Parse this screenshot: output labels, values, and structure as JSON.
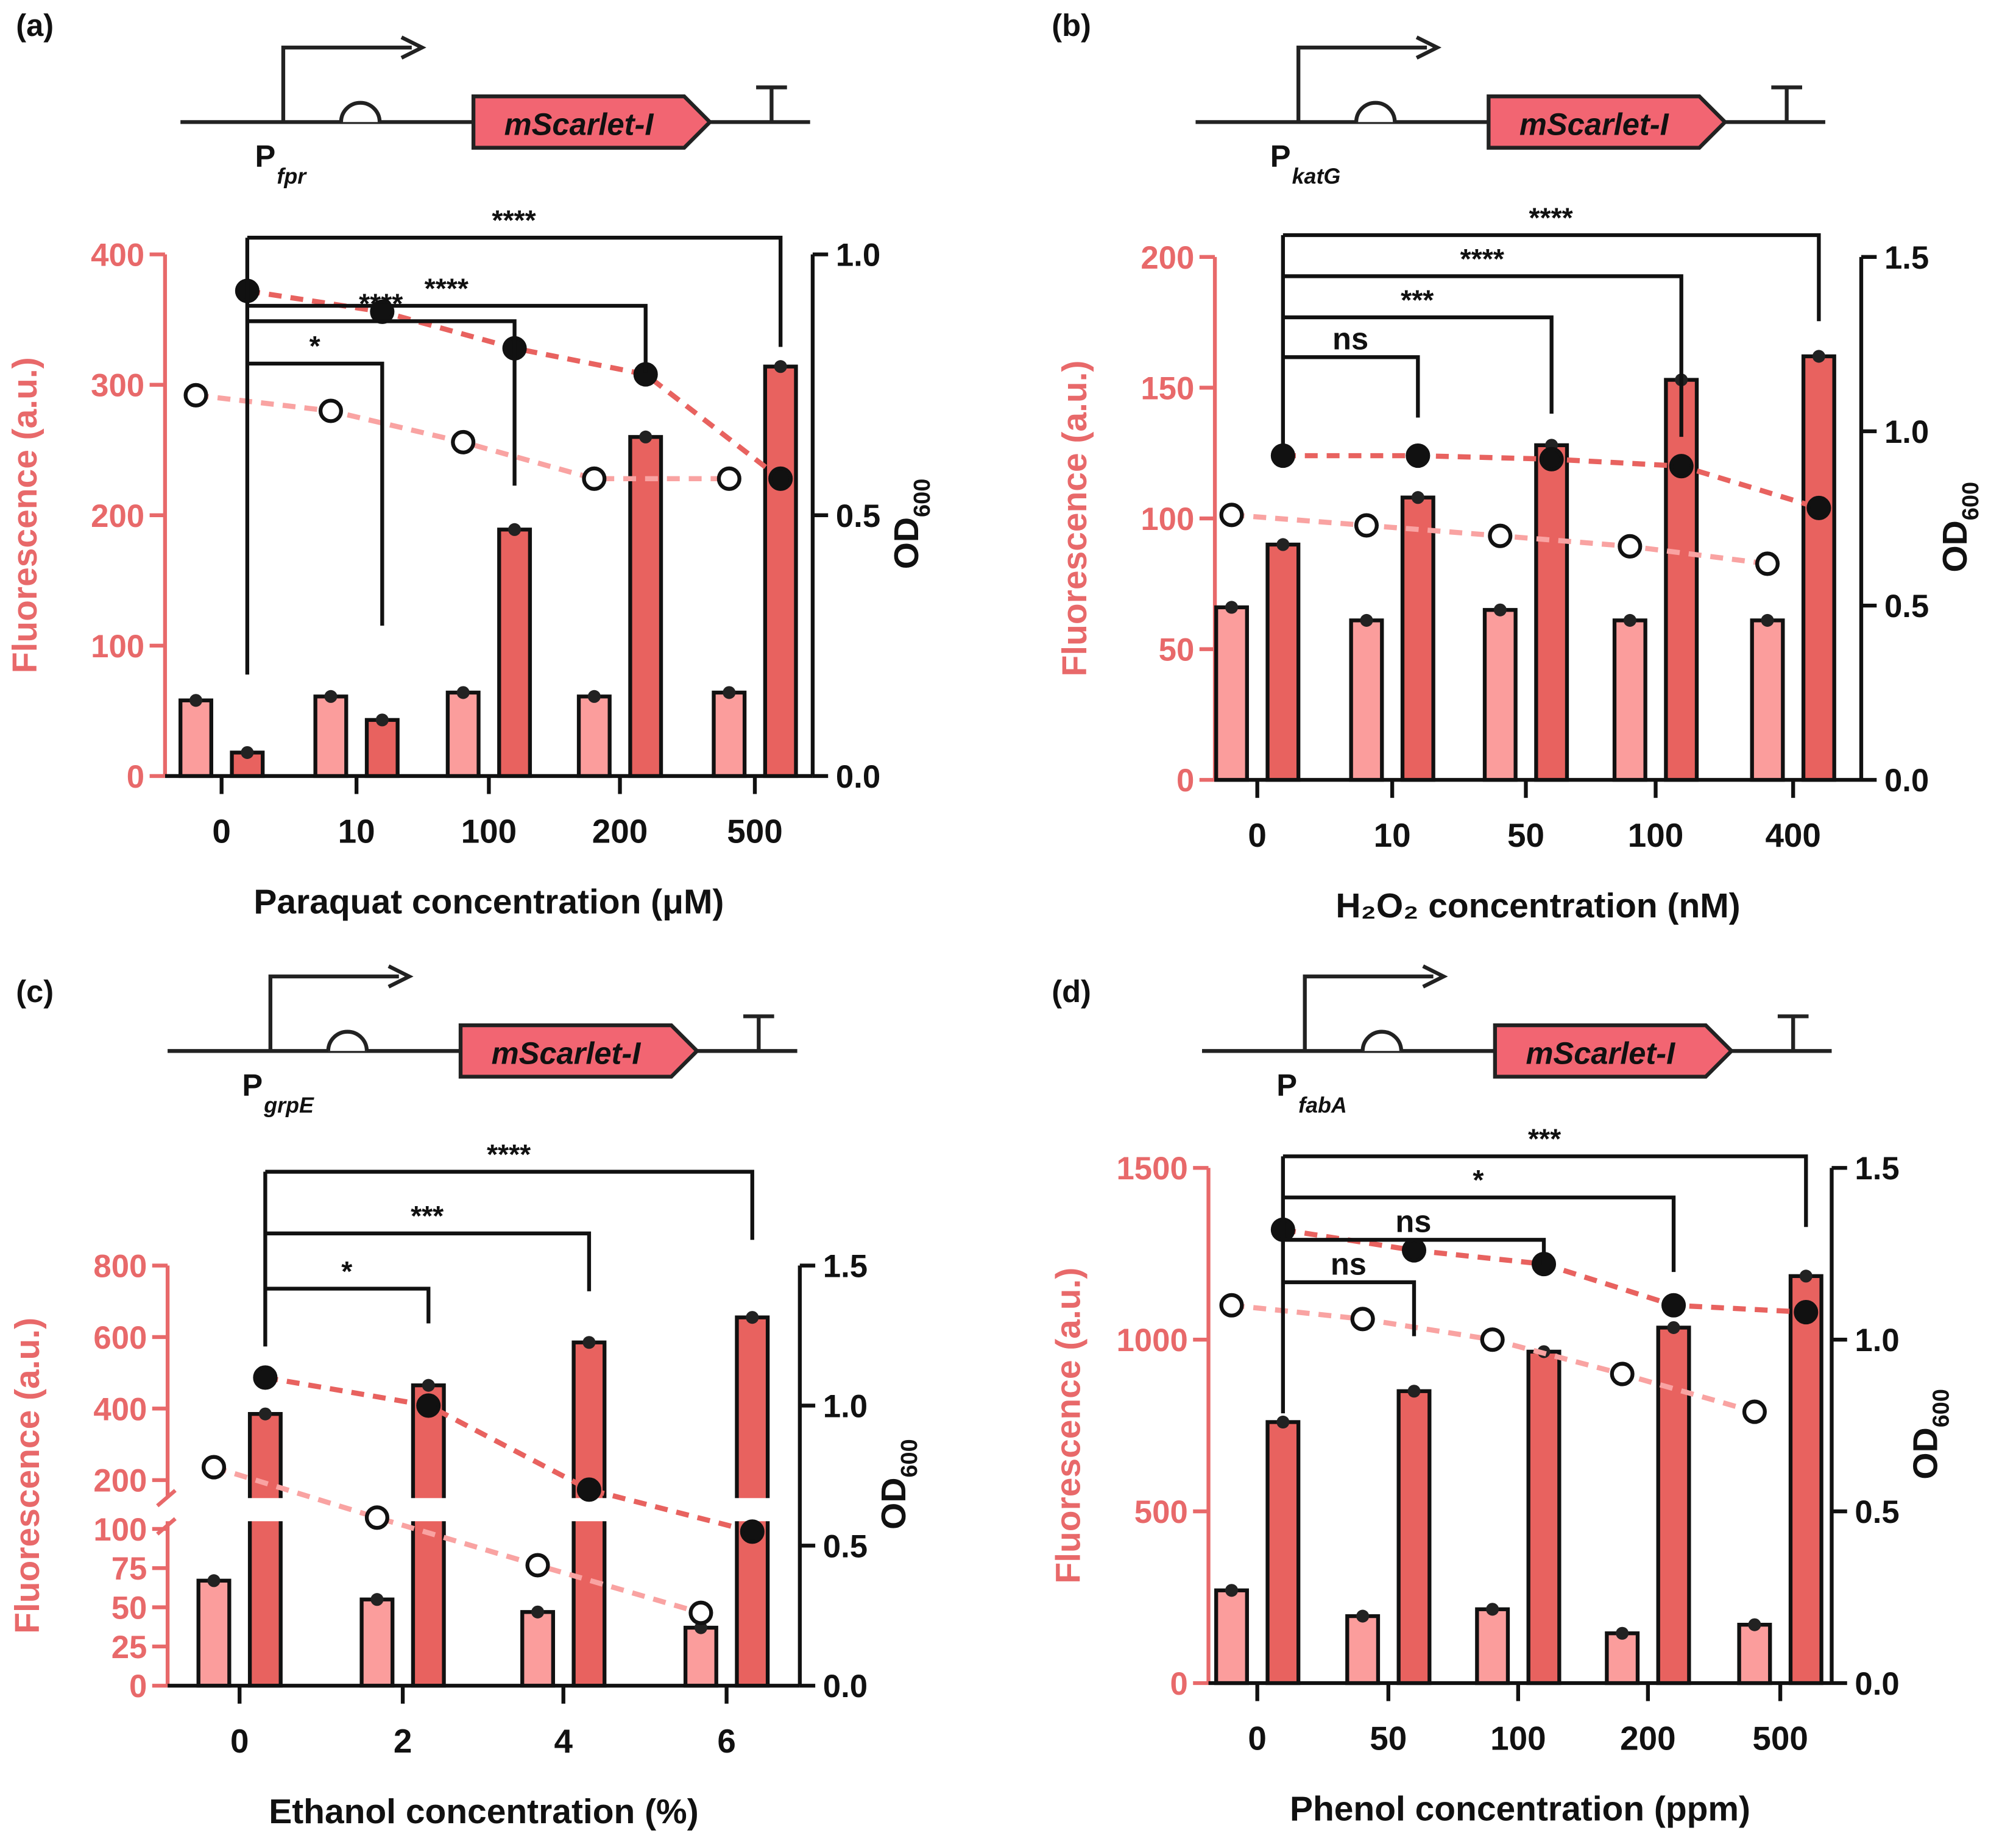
{
  "colors": {
    "light_bar": "#fb9d9c",
    "dark_bar": "#e8625f",
    "axis_left": "#e8696a",
    "axis_right": "#111111",
    "line_dark": "#e8625f",
    "line_light": "#f9a3a2"
  },
  "chart_data": [
    {
      "type": "bar",
      "panel_label": "(a)",
      "promoter": {
        "p": "P",
        "sub": "fpr"
      },
      "gene": "mScarlet-I",
      "categories": [
        "0",
        "10",
        "100",
        "200",
        "500"
      ],
      "xlabel": "Paraquat concentration (μM)",
      "ylabel": "Fluorescence (a.u.)",
      "y2label": {
        "main": "OD",
        "sub": "600"
      },
      "ylim": [
        0,
        400
      ],
      "y2lim": [
        0,
        1.0
      ],
      "yticks": [
        "0",
        "100",
        "200",
        "300",
        "400"
      ],
      "y2ticks": [
        "0.0",
        "0.5",
        "1.0"
      ],
      "series": [
        {
          "name": "fluorescence_control",
          "kind": "bar",
          "values": [
            58,
            61,
            64,
            61,
            64
          ]
        },
        {
          "name": "fluorescence_induced",
          "kind": "bar",
          "values": [
            18,
            43,
            189,
            260,
            314
          ]
        },
        {
          "name": "od600_control",
          "kind": "line",
          "values": [
            0.73,
            0.7,
            0.64,
            0.57,
            0.57
          ]
        },
        {
          "name": "od600_induced",
          "kind": "line",
          "values": [
            0.93,
            0.89,
            0.82,
            0.77,
            0.57
          ]
        }
      ],
      "significance": [
        {
          "to": "10",
          "label": "*"
        },
        {
          "to": "100",
          "label": "****"
        },
        {
          "to": "200",
          "label": "****"
        },
        {
          "to": "500",
          "label": "****"
        }
      ]
    },
    {
      "type": "bar",
      "panel_label": "(b)",
      "promoter": {
        "p": "P",
        "sub": "katG"
      },
      "gene": "mScarlet-I",
      "categories": [
        "0",
        "10",
        "50",
        "100",
        "400"
      ],
      "xlabel": "H₂O₂ concentration (nM)",
      "ylabel": "Fluorescence (a.u.)",
      "y2label": {
        "main": "OD",
        "sub": "600"
      },
      "ylim": [
        0,
        200
      ],
      "y2lim": [
        0,
        1.5
      ],
      "yticks": [
        "0",
        "50",
        "100",
        "150",
        "200"
      ],
      "y2ticks": [
        "0.0",
        "0.5",
        "1.0",
        "1.5"
      ],
      "series": [
        {
          "name": "fluorescence_control",
          "kind": "bar",
          "values": [
            66,
            61,
            65,
            61,
            61
          ]
        },
        {
          "name": "fluorescence_induced",
          "kind": "bar",
          "values": [
            90,
            108,
            128,
            153,
            162
          ]
        },
        {
          "name": "od600_control",
          "kind": "line",
          "values": [
            0.76,
            0.73,
            0.7,
            0.67,
            0.62
          ]
        },
        {
          "name": "od600_induced",
          "kind": "line",
          "values": [
            0.93,
            0.93,
            0.92,
            0.9,
            0.78
          ]
        }
      ],
      "significance": [
        {
          "to": "10",
          "label": "ns"
        },
        {
          "to": "50",
          "label": "***"
        },
        {
          "to": "100",
          "label": "****"
        },
        {
          "to": "400",
          "label": "****"
        }
      ]
    },
    {
      "type": "bar",
      "panel_label": "(c)",
      "promoter": {
        "p": "P",
        "sub": "grpE"
      },
      "gene": "mScarlet-I",
      "categories": [
        "0",
        "2",
        "4",
        "6"
      ],
      "xlabel": "Ethanol concentration (%)",
      "ylabel": "Fluorescence (a.u.)",
      "y2label": {
        "main": "OD",
        "sub": "600"
      },
      "ylim": [
        0,
        800
      ],
      "y_break": [
        100,
        200
      ],
      "y2lim": [
        0,
        1.5
      ],
      "yticks": [
        "0",
        "25",
        "50",
        "75",
        "100",
        "200",
        "400",
        "600",
        "800"
      ],
      "y2ticks": [
        "0.0",
        "0.5",
        "1.0",
        "1.5"
      ],
      "series": [
        {
          "name": "fluorescence_control",
          "kind": "bar",
          "values": [
            67,
            55,
            47,
            37
          ]
        },
        {
          "name": "fluorescence_induced",
          "kind": "bar",
          "values": [
            385,
            465,
            585,
            655
          ]
        },
        {
          "name": "od600_control",
          "kind": "line",
          "values": [
            0.78,
            0.6,
            0.43,
            0.26
          ]
        },
        {
          "name": "od600_induced",
          "kind": "line",
          "values": [
            1.1,
            1.0,
            0.7,
            0.55
          ]
        }
      ],
      "significance": [
        {
          "to": "2",
          "label": "*"
        },
        {
          "to": "4",
          "label": "***"
        },
        {
          "to": "6",
          "label": "****"
        }
      ]
    },
    {
      "type": "bar",
      "panel_label": "(d)",
      "promoter": {
        "p": "P",
        "sub": "fabA"
      },
      "gene": "mScarlet-I",
      "categories": [
        "0",
        "50",
        "100",
        "200",
        "500"
      ],
      "xlabel": "Phenol concentration (ppm)",
      "ylabel": "Fluorescence (a.u.)",
      "y2label": {
        "main": "OD",
        "sub": "600"
      },
      "ylim": [
        0,
        1500
      ],
      "y2lim": [
        0,
        1.5
      ],
      "yticks": [
        "0",
        "500",
        "1000",
        "1500"
      ],
      "y2ticks": [
        "0.0",
        "0.5",
        "1.0",
        "1.5"
      ],
      "series": [
        {
          "name": "fluorescence_control",
          "kind": "bar",
          "values": [
            270,
            195,
            215,
            145,
            170
          ]
        },
        {
          "name": "fluorescence_induced",
          "kind": "bar",
          "values": [
            760,
            850,
            965,
            1035,
            1185
          ]
        },
        {
          "name": "od600_control",
          "kind": "line",
          "values": [
            1.1,
            1.06,
            1.0,
            0.9,
            0.79
          ]
        },
        {
          "name": "od600_induced",
          "kind": "line",
          "values": [
            1.32,
            1.26,
            1.22,
            1.1,
            1.08
          ]
        }
      ],
      "significance": [
        {
          "to": "50",
          "label": "ns"
        },
        {
          "to": "100",
          "label": "ns"
        },
        {
          "to": "200",
          "label": "*"
        },
        {
          "to": "500",
          "label": "***"
        }
      ]
    }
  ]
}
